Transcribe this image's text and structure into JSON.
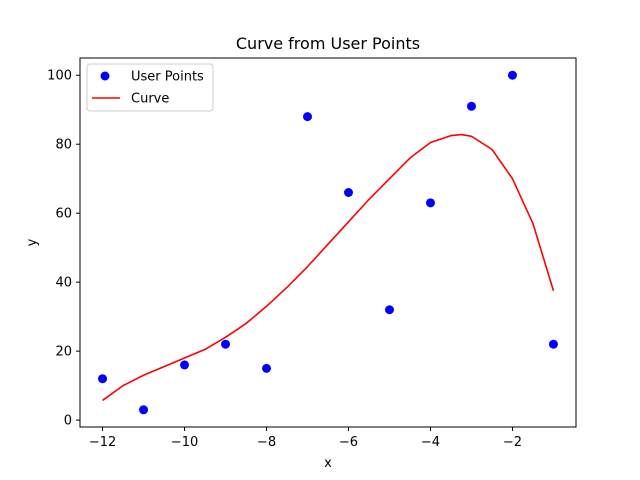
{
  "chart_data": {
    "type": "line",
    "title": "Curve from User Points",
    "xlabel": "x",
    "ylabel": "y",
    "xlim": [
      -12.55,
      -0.45
    ],
    "ylim": [
      -2.0,
      105.0
    ],
    "xticks": [
      -12,
      -10,
      -8,
      -6,
      -4,
      -2
    ],
    "yticks": [
      0,
      20,
      40,
      60,
      80,
      100
    ],
    "grid": false,
    "legend": "top-left",
    "series": [
      {
        "name": "User Points",
        "kind": "scatter",
        "color": "#0000ff",
        "x": [
          -12,
          -11,
          -10,
          -9,
          -8,
          -7,
          -6,
          -5,
          -4,
          -3,
          -2,
          -1
        ],
        "y": [
          12,
          3,
          16,
          22,
          15,
          88,
          66,
          32,
          63,
          91,
          100,
          22
        ]
      },
      {
        "name": "Curve",
        "kind": "line",
        "color": "#ff0000",
        "x": [
          -12,
          -11.5,
          -11,
          -10.5,
          -10,
          -9.5,
          -9,
          -8.5,
          -8,
          -7.5,
          -7,
          -6.5,
          -6,
          -5.5,
          -5,
          -4.5,
          -4,
          -3.5,
          -3.25,
          -3,
          -2.5,
          -2,
          -1.5,
          -1
        ],
        "y": [
          5.7,
          10.0,
          13.0,
          15.5,
          18.0,
          20.5,
          24.0,
          28.0,
          33.0,
          38.5,
          44.5,
          51.0,
          57.5,
          64.0,
          70.0,
          76.0,
          80.5,
          82.5,
          82.8,
          82.3,
          78.5,
          70.0,
          57.0,
          37.5
        ]
      }
    ]
  }
}
